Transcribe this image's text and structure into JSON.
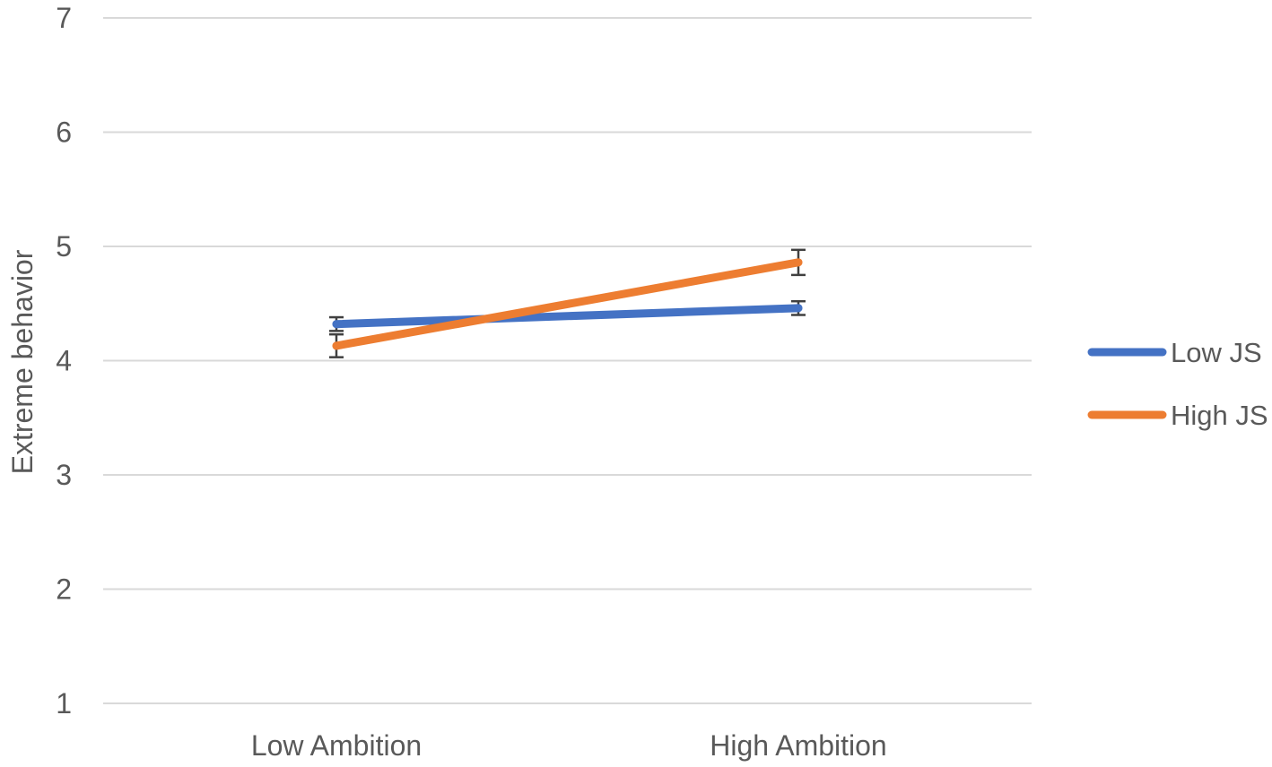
{
  "chart_data": {
    "type": "line",
    "ylabel": "Extreme behavior",
    "xlabel": "",
    "categories": [
      "Low Ambition",
      "High Ambition"
    ],
    "ylim": [
      1,
      7
    ],
    "y_ticks": [
      1,
      2,
      3,
      4,
      5,
      6,
      7
    ],
    "grid": "horizontal",
    "legend_position": "right",
    "series": [
      {
        "name": "Low JS",
        "color": "#4472C4",
        "values": [
          4.32,
          4.46
        ],
        "error": [
          0.06,
          0.06
        ]
      },
      {
        "name": "High JS",
        "color": "#ED7D31",
        "values": [
          4.13,
          4.86
        ],
        "error": [
          0.1,
          0.11
        ]
      }
    ]
  }
}
